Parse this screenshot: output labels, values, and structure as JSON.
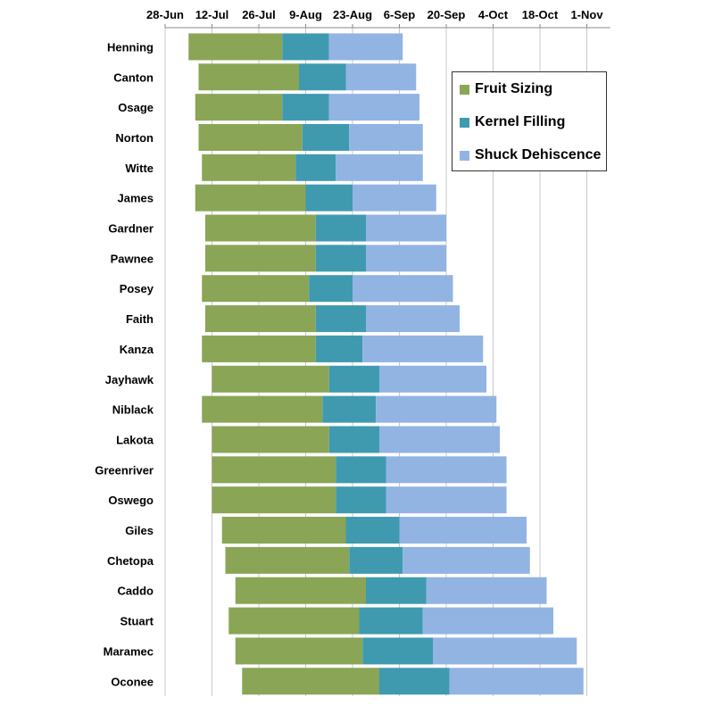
{
  "chart_data": {
    "type": "bar",
    "orientation": "horizontal",
    "stacked": true,
    "x_axis": {
      "position": "top",
      "ticks": [
        "28-Jun",
        "12-Jul",
        "26-Jul",
        "9-Aug",
        "23-Aug",
        "6-Sep",
        "20-Sep",
        "4-Oct",
        "18-Oct",
        "1-Nov"
      ],
      "range": [
        "2014-06-28",
        "2014-11-01"
      ]
    },
    "grid": "vertical",
    "categories": [
      "Henning",
      "Canton",
      "Osage",
      "Norton",
      "Witte",
      "James",
      "Gardner",
      "Pawnee",
      "Posey",
      "Faith",
      "Kanza",
      "Jayhawk",
      "Niblack",
      "Lakota",
      "Greenriver",
      "Oswego",
      "Giles",
      "Chetopa",
      "Caddo",
      "Stuart",
      "Maramec",
      "Oconee"
    ],
    "series": [
      {
        "name": "Fruit Sizing",
        "color": "#8aa556",
        "start": [
          "2014-07-05",
          "2014-07-08",
          "2014-07-07",
          "2014-07-08",
          "2014-07-09",
          "2014-07-07",
          "2014-07-10",
          "2014-07-10",
          "2014-07-09",
          "2014-07-10",
          "2014-07-09",
          "2014-07-12",
          "2014-07-09",
          "2014-07-12",
          "2014-07-12",
          "2014-07-12",
          "2014-07-15",
          "2014-07-16",
          "2014-07-19",
          "2014-07-17",
          "2014-07-19",
          "2014-07-21"
        ],
        "end": [
          "2014-08-02",
          "2014-08-07",
          "2014-08-02",
          "2014-08-08",
          "2014-08-06",
          "2014-08-09",
          "2014-08-12",
          "2014-08-12",
          "2014-08-10",
          "2014-08-12",
          "2014-08-12",
          "2014-08-16",
          "2014-08-14",
          "2014-08-16",
          "2014-08-18",
          "2014-08-18",
          "2014-08-21",
          "2014-08-22",
          "2014-08-27",
          "2014-08-25",
          "2014-08-26",
          "2014-08-31"
        ]
      },
      {
        "name": "Kernel Filling",
        "color": "#3f9ab0",
        "start": [
          "2014-08-02",
          "2014-08-07",
          "2014-08-02",
          "2014-08-08",
          "2014-08-06",
          "2014-08-09",
          "2014-08-12",
          "2014-08-12",
          "2014-08-10",
          "2014-08-12",
          "2014-08-12",
          "2014-08-16",
          "2014-08-14",
          "2014-08-16",
          "2014-08-18",
          "2014-08-18",
          "2014-08-21",
          "2014-08-22",
          "2014-08-27",
          "2014-08-25",
          "2014-08-26",
          "2014-08-31"
        ],
        "end": [
          "2014-08-16",
          "2014-08-21",
          "2014-08-16",
          "2014-08-22",
          "2014-08-18",
          "2014-08-23",
          "2014-08-27",
          "2014-08-27",
          "2014-08-23",
          "2014-08-27",
          "2014-08-26",
          "2014-08-31",
          "2014-08-30",
          "2014-08-31",
          "2014-09-02",
          "2014-09-02",
          "2014-09-06",
          "2014-09-07",
          "2014-09-14",
          "2014-09-13",
          "2014-09-16",
          "2014-09-21"
        ]
      },
      {
        "name": "Shuck Dehiscence",
        "color": "#92b4e3",
        "start": [
          "2014-08-16",
          "2014-08-21",
          "2014-08-16",
          "2014-08-22",
          "2014-08-18",
          "2014-08-23",
          "2014-08-27",
          "2014-08-27",
          "2014-08-23",
          "2014-08-27",
          "2014-08-26",
          "2014-08-31",
          "2014-08-30",
          "2014-08-31",
          "2014-09-02",
          "2014-09-02",
          "2014-09-06",
          "2014-09-07",
          "2014-09-14",
          "2014-09-13",
          "2014-09-16",
          "2014-09-21"
        ],
        "end": [
          "2014-09-07",
          "2014-09-11",
          "2014-09-12",
          "2014-09-13",
          "2014-09-13",
          "2014-09-17",
          "2014-09-20",
          "2014-09-20",
          "2014-09-22",
          "2014-09-24",
          "2014-10-01",
          "2014-10-02",
          "2014-10-05",
          "2014-10-06",
          "2014-10-08",
          "2014-10-08",
          "2014-10-14",
          "2014-10-15",
          "2014-10-20",
          "2014-10-22",
          "2014-10-29",
          "2014-10-31"
        ]
      }
    ],
    "legend": {
      "position": "right",
      "entries": [
        "Fruit Sizing",
        "Kernel Filling",
        "Shuck Dehiscence"
      ]
    }
  }
}
